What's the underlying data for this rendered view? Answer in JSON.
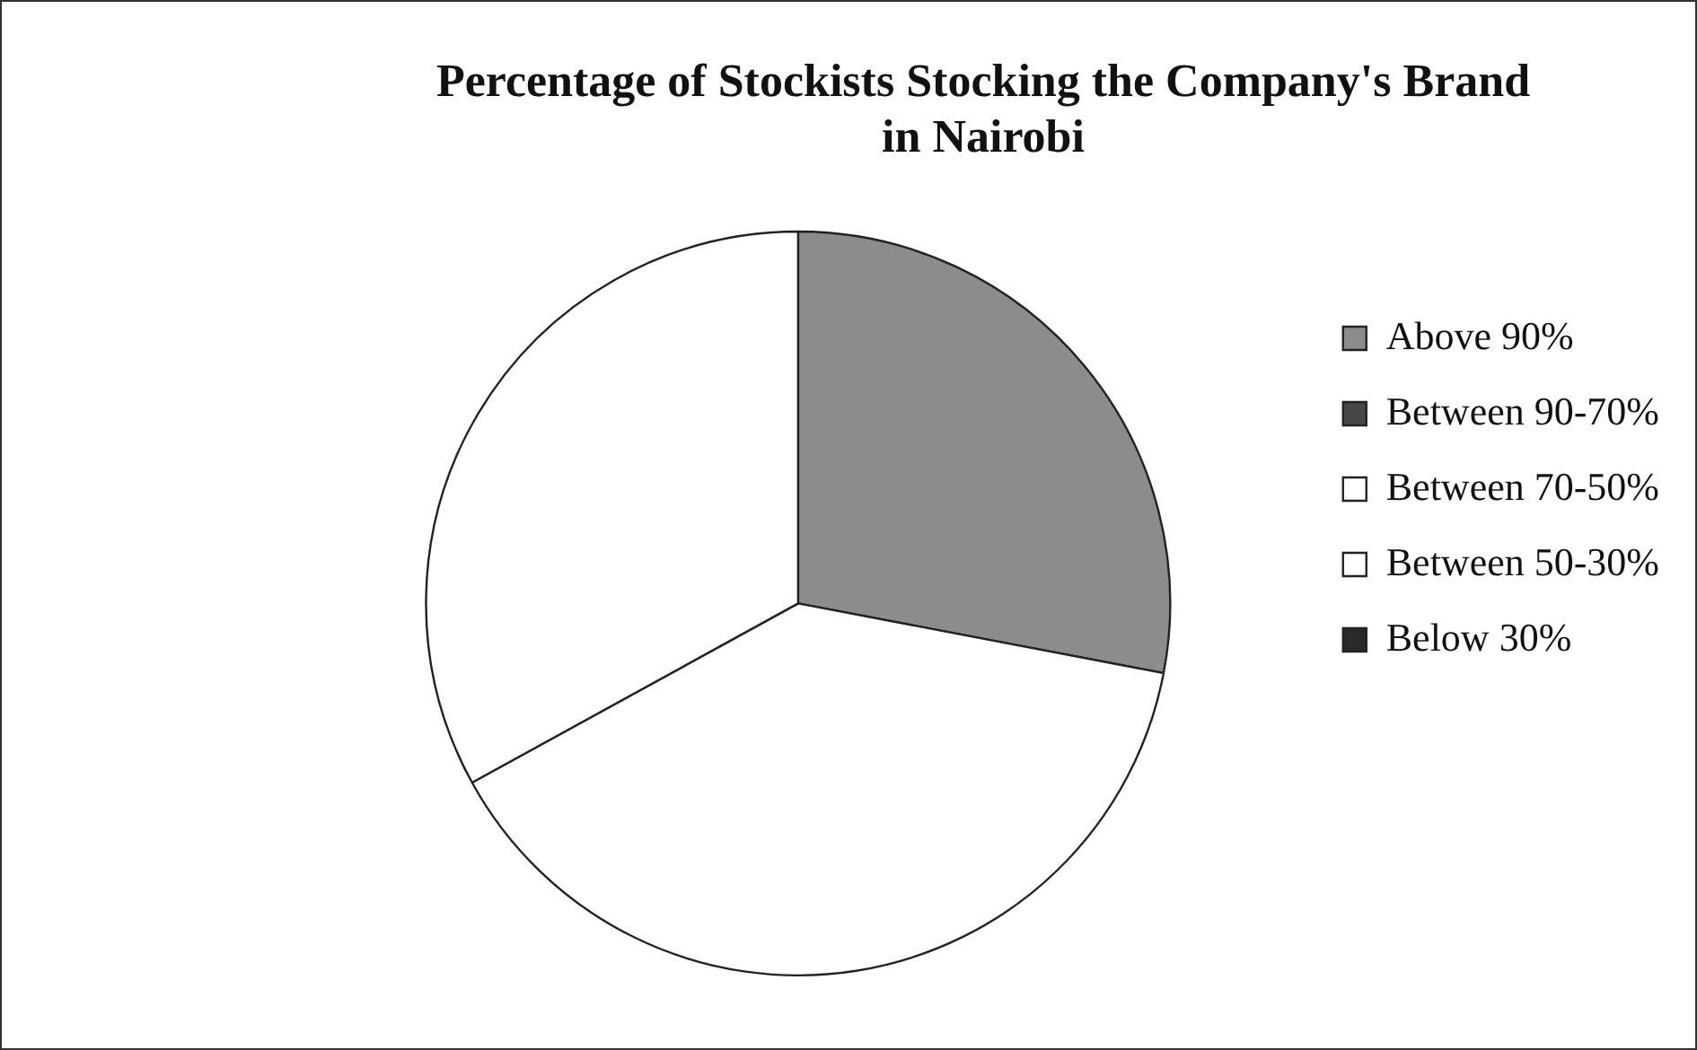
{
  "chart_data": {
    "type": "pie",
    "title": "Percentage of Stockists Stocking the Company's Brand in Nairobi",
    "categories": [
      "Above 90%",
      "Between 90-70%",
      "Between 70-50%",
      "Between 50-30%",
      "Below 30%"
    ],
    "values": [
      28,
      0,
      39,
      33,
      0
    ],
    "colors": [
      "#8c8c8c",
      "#474747",
      "#ffffff",
      "#ffffff",
      "#2a2a2a"
    ],
    "legend": "right"
  }
}
